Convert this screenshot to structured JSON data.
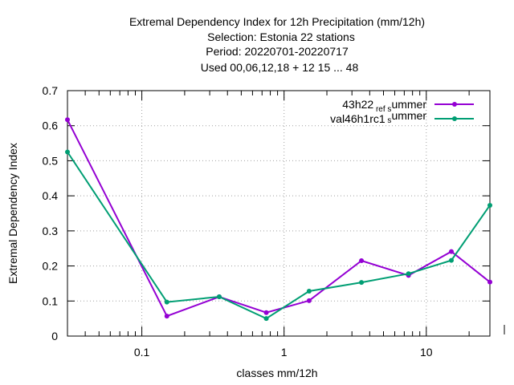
{
  "chart_data": {
    "type": "line",
    "title_lines": [
      "Extremal Dependency Index  for 12h Precipitation (mm/12h)",
      "Selection: Estonia      22 stations",
      "Period: 20220701-20220717",
      "Used  00,06,12,18  + 12 15 ... 48"
    ],
    "xlabel": "classes mm/12h",
    "ylabel": "Extremal Dependency Index",
    "xscale": "log",
    "xlim": [
      0.03,
      28
    ],
    "ylim": [
      0,
      0.7
    ],
    "x_ticks": [
      0.1,
      1,
      10
    ],
    "x_tick_labels": [
      "0.1",
      "1",
      "10"
    ],
    "y_ticks": [
      0,
      0.1,
      0.2,
      0.3,
      0.4,
      0.5,
      0.6,
      0.7
    ],
    "y_tick_labels": [
      "0",
      "0.1",
      "0.2",
      "0.3",
      "0.4",
      "0.5",
      "0.6",
      "0.7"
    ],
    "grid": true,
    "legend_position": "top-right",
    "series": [
      {
        "name_main": "43h22",
        "name_sub1": "ref",
        "name_sub2": "s",
        "name_tail": "ummer",
        "color": "#9400d3",
        "x": [
          0.03,
          0.15,
          0.35,
          0.75,
          1.5,
          3.5,
          7.5,
          15,
          28
        ],
        "y": [
          0.617,
          0.057,
          0.112,
          0.067,
          0.101,
          0.215,
          0.173,
          0.241,
          0.154
        ]
      },
      {
        "name_main": "val46h1rc1",
        "name_sub1": "",
        "name_sub2": "s",
        "name_tail": "ummer",
        "color": "#009e73",
        "x": [
          0.03,
          0.15,
          0.35,
          0.75,
          1.5,
          3.5,
          7.5,
          15,
          28
        ],
        "y": [
          0.525,
          0.097,
          0.112,
          0.05,
          0.128,
          0.153,
          0.178,
          0.216,
          0.373
        ]
      }
    ]
  }
}
